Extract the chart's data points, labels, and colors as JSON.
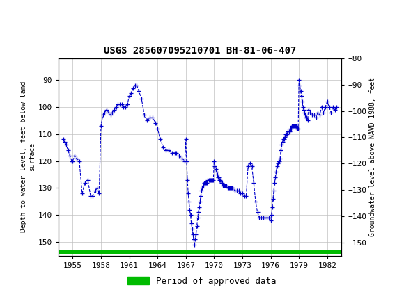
{
  "title": "USGS 285607095210701 BH-81-06-407",
  "ylabel_left": "Depth to water level, feet below land\nsurface",
  "ylabel_right": "Groundwater level above NAVD 1988, feet",
  "xlim": [
    1953.5,
    1983.5
  ],
  "ylim_left": [
    155,
    82
  ],
  "ylim_right": [
    -155,
    -82
  ],
  "yticks_left": [
    90,
    100,
    110,
    120,
    130,
    140,
    150
  ],
  "yticks_right": [
    -80,
    -90,
    -100,
    -110,
    -120,
    -130,
    -140,
    -150
  ],
  "xticks": [
    1955,
    1958,
    1961,
    1964,
    1967,
    1970,
    1973,
    1976,
    1979,
    1982
  ],
  "header_color": "#1a6b3a",
  "line_color": "#0000cc",
  "legend_label": "Period of approved data",
  "legend_color": "#00bb00",
  "data_x": [
    1954.0,
    1954.15,
    1954.3,
    1954.5,
    1954.7,
    1954.9,
    1955.0,
    1955.2,
    1955.4,
    1955.7,
    1956.0,
    1956.3,
    1956.6,
    1956.9,
    1957.1,
    1957.4,
    1957.6,
    1957.8,
    1958.0,
    1958.2,
    1958.4,
    1958.6,
    1958.8,
    1959.0,
    1959.2,
    1959.4,
    1959.6,
    1959.8,
    1960.0,
    1960.2,
    1960.4,
    1960.6,
    1960.8,
    1961.0,
    1961.2,
    1961.4,
    1961.6,
    1961.8,
    1962.0,
    1962.3,
    1962.6,
    1962.9,
    1963.2,
    1963.5,
    1963.8,
    1964.0,
    1964.3,
    1964.6,
    1964.9,
    1965.2,
    1965.5,
    1965.8,
    1966.0,
    1966.3,
    1966.6,
    1966.9,
    1967.0,
    1967.08,
    1967.17,
    1967.25,
    1967.33,
    1967.42,
    1967.5,
    1967.58,
    1967.67,
    1967.75,
    1967.83,
    1967.92,
    1968.0,
    1968.08,
    1968.17,
    1968.25,
    1968.33,
    1968.42,
    1968.5,
    1968.58,
    1968.67,
    1968.75,
    1968.83,
    1968.92,
    1969.0,
    1969.08,
    1969.17,
    1969.25,
    1969.33,
    1969.42,
    1969.5,
    1969.58,
    1969.67,
    1969.75,
    1969.83,
    1969.92,
    1970.0,
    1970.08,
    1970.17,
    1970.25,
    1970.33,
    1970.42,
    1970.5,
    1970.58,
    1970.67,
    1970.75,
    1970.83,
    1970.92,
    1971.0,
    1971.08,
    1971.17,
    1971.25,
    1971.33,
    1971.42,
    1971.5,
    1971.58,
    1971.67,
    1971.75,
    1971.83,
    1971.92,
    1972.0,
    1972.2,
    1972.4,
    1972.6,
    1972.8,
    1973.0,
    1973.2,
    1973.4,
    1973.6,
    1973.8,
    1974.0,
    1974.2,
    1974.4,
    1974.6,
    1974.8,
    1975.0,
    1975.2,
    1975.4,
    1975.6,
    1975.8,
    1976.0,
    1976.08,
    1976.17,
    1976.25,
    1976.33,
    1976.42,
    1976.5,
    1976.58,
    1976.67,
    1976.75,
    1976.83,
    1976.92,
    1977.0,
    1977.08,
    1977.17,
    1977.25,
    1977.33,
    1977.42,
    1977.5,
    1977.58,
    1977.67,
    1977.75,
    1977.83,
    1977.92,
    1978.0,
    1978.08,
    1978.17,
    1978.25,
    1978.33,
    1978.42,
    1978.5,
    1978.58,
    1978.67,
    1978.75,
    1978.83,
    1978.92,
    1979.0,
    1979.08,
    1979.17,
    1979.25,
    1979.33,
    1979.42,
    1979.5,
    1979.58,
    1979.67,
    1979.75,
    1979.83,
    1979.92,
    1980.0,
    1980.2,
    1980.4,
    1980.6,
    1980.8,
    1981.0,
    1981.2,
    1981.4,
    1981.6,
    1981.8,
    1982.0,
    1982.2,
    1982.4,
    1982.6,
    1982.8,
    1983.0
  ],
  "data_y": [
    112,
    113,
    114,
    116,
    118,
    120,
    120,
    118,
    119,
    120,
    132,
    128,
    127,
    133,
    133,
    131,
    130,
    132,
    107,
    103,
    102,
    101,
    102,
    103,
    102,
    101,
    100,
    99,
    99,
    99,
    100,
    100,
    99,
    96,
    95,
    93,
    92,
    92,
    94,
    97,
    103,
    105,
    104,
    104,
    106,
    108,
    112,
    115,
    116,
    116,
    117,
    117,
    117,
    118,
    119,
    120,
    112,
    120,
    127,
    132,
    135,
    138,
    140,
    143,
    145,
    147,
    149,
    151,
    149,
    147,
    144,
    141,
    139,
    137,
    135,
    133,
    131,
    130,
    129,
    128,
    128,
    128,
    128,
    128,
    127,
    127,
    127,
    127,
    127,
    127,
    127,
    127,
    120,
    122,
    123,
    124,
    125,
    126,
    126,
    127,
    127,
    128,
    128,
    129,
    129,
    129,
    129,
    129,
    129,
    130,
    130,
    130,
    130,
    130,
    130,
    130,
    130,
    131,
    131,
    131,
    132,
    132,
    133,
    133,
    122,
    121,
    122,
    128,
    135,
    139,
    141,
    141,
    141,
    141,
    141,
    141,
    142,
    140,
    137,
    134,
    131,
    128,
    126,
    124,
    122,
    121,
    120,
    120,
    119,
    116,
    114,
    113,
    112,
    112,
    111,
    110,
    110,
    110,
    109,
    109,
    109,
    108,
    108,
    107,
    107,
    107,
    107,
    107,
    107,
    108,
    108,
    108,
    90,
    92,
    94,
    96,
    98,
    100,
    101,
    102,
    103,
    104,
    104,
    105,
    101,
    102,
    103,
    103,
    104,
    102,
    103,
    100,
    102,
    100,
    98,
    100,
    102,
    100,
    101,
    100
  ]
}
